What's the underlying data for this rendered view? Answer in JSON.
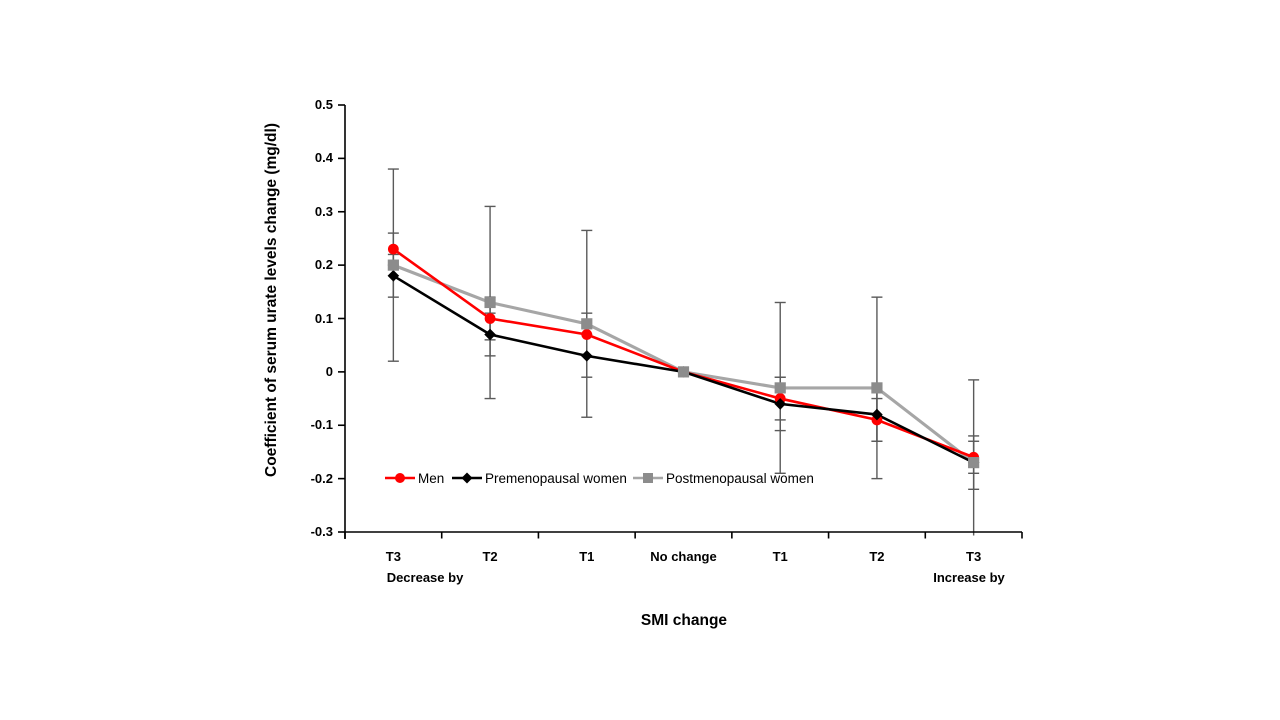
{
  "chart_data": {
    "type": "line",
    "title": "",
    "xlabel": "SMI change",
    "ylabel": "Coefficient of serum urate levels change (mg/dl)",
    "categories": [
      "T3",
      "T2",
      "T1",
      "No change",
      "T1",
      "T2",
      "T3"
    ],
    "axis_sublabels": {
      "left": "Decrease by",
      "right": "Increase by"
    },
    "ylim": [
      -0.3,
      0.5
    ],
    "ytick_labels": [
      "0.5",
      "0.4",
      "0.3",
      "0.2",
      "0.1",
      "0",
      "-0.1",
      "-0.2",
      "-0.3"
    ],
    "ytick_values": [
      0.5,
      0.4,
      0.3,
      0.2,
      0.1,
      0,
      -0.1,
      -0.2,
      -0.3
    ],
    "grid": false,
    "legend_position": "inside-bottom-left",
    "axis_color": "#000000",
    "error_bar_color": "#5a5a5a",
    "series": [
      {
        "name": "Men",
        "color": "#ff0000",
        "marker": "circle",
        "values": [
          0.23,
          0.1,
          0.07,
          0.0,
          -0.05,
          -0.09,
          -0.16
        ],
        "errors": [
          0.03,
          0.04,
          0.04,
          0,
          0.04,
          0.04,
          0.03
        ]
      },
      {
        "name": "Premenopausal women",
        "color": "#000000",
        "marker": "diamond",
        "values": [
          0.18,
          0.07,
          0.03,
          0.0,
          -0.06,
          -0.08,
          -0.17
        ],
        "errors": [
          0.04,
          0.04,
          0.04,
          0,
          0.05,
          0.05,
          0.05
        ]
      },
      {
        "name": "Postmenopausal women",
        "color": "#a6a6a6",
        "marker_color": "#8c8c8c",
        "marker": "square",
        "values": [
          0.2,
          0.13,
          0.09,
          0.0,
          -0.03,
          -0.03,
          -0.17
        ],
        "errors": [
          0.18,
          0.18,
          0.175,
          0,
          0.16,
          0.17,
          0.155
        ]
      }
    ]
  }
}
